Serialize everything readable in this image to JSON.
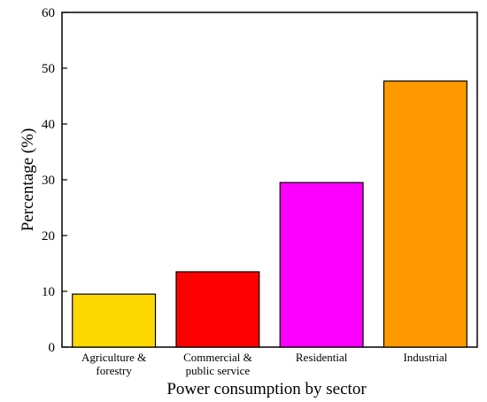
{
  "chart_data": {
    "type": "bar",
    "title": "",
    "xlabel": "Power consumption by sector",
    "ylabel": "Percentage (%)",
    "ylim": [
      0,
      60
    ],
    "yticks": [
      0,
      10,
      20,
      30,
      40,
      50,
      60
    ],
    "grid": false,
    "legend": "none",
    "categories": [
      [
        "Agriculture &",
        "forestry"
      ],
      [
        "Commercial &",
        "public service"
      ],
      [
        "Residential"
      ],
      [
        "Industrial"
      ]
    ],
    "values": [
      9.5,
      13.5,
      29.5,
      47.7
    ],
    "colors": [
      "#FFD700",
      "#FF0000",
      "#FF00FF",
      "#FF9900"
    ]
  }
}
